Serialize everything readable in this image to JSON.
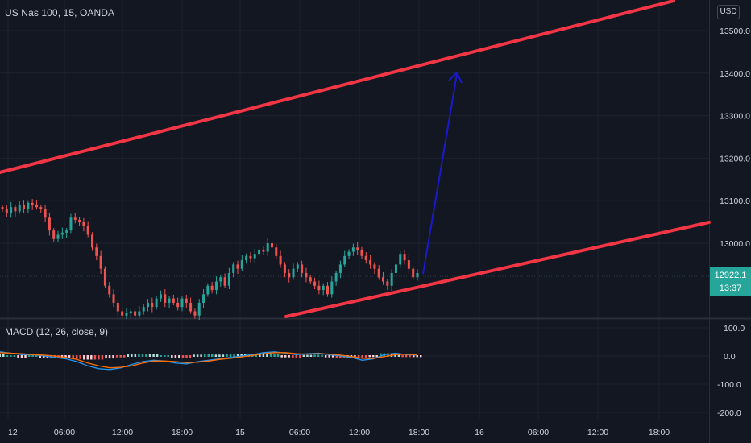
{
  "symbol_title": "US Nas 100, 15, OANDA",
  "currency": "USD",
  "last_price": "12922.1",
  "countdown": "13:37",
  "macd_title": "MACD (12, 26, close, 9)",
  "colors": {
    "background": "#131722",
    "grid": "#1e222d",
    "up": "#26a69a",
    "down": "#ef5350",
    "channel": "#f23645",
    "arrow": "#1a1acc",
    "macd_line": "#2196f3",
    "signal_line": "#ff6d00",
    "text": "#d1d4dc"
  },
  "chart_data": [
    {
      "type": "candlestick",
      "title": "US Nas 100, 15, OANDA",
      "xlabel": "",
      "ylabel": "USD",
      "ylim": [
        12820,
        13550
      ],
      "x_ticks": [
        "12",
        "06:00",
        "12:00",
        "18:00",
        "15",
        "06:00",
        "12:00",
        "18:00",
        "16",
        "06:00",
        "12:00",
        "18:00"
      ],
      "y_ticks": [
        13000.0,
        13100.0,
        13200.0,
        13300.0,
        13400.0,
        13500.0
      ],
      "last_price": 12922.1,
      "close_series": [
        13080,
        13070,
        13085,
        13075,
        13090,
        13080,
        13095,
        13090,
        13085,
        13080,
        13060,
        13030,
        13010,
        13020,
        13025,
        13030,
        13060,
        13055,
        13050,
        13040,
        13020,
        12990,
        12970,
        12940,
        12900,
        12880,
        12860,
        12840,
        12830,
        12835,
        12840,
        12830,
        12840,
        12850,
        12860,
        12850,
        12870,
        12880,
        12860,
        12870,
        12860,
        12850,
        12870,
        12860,
        12840,
        12830,
        12860,
        12880,
        12900,
        12890,
        12910,
        12920,
        12900,
        12930,
        12950,
        12940,
        12960,
        12970,
        12965,
        12975,
        12985,
        12980,
        13000,
        12990,
        12970,
        12950,
        12930,
        12920,
        12940,
        12950,
        12930,
        12920,
        12910,
        12900,
        12890,
        12900,
        12880,
        12910,
        12930,
        12950,
        12970,
        12980,
        12990,
        12985,
        12970,
        12960,
        12950,
        12940,
        12920,
        12910,
        12900,
        12930,
        12950,
        12975,
        12960,
        12940,
        12920,
        12930
      ],
      "annotations": [
        {
          "kind": "channel_upper",
          "from": 13180,
          "to": 13560
        },
        {
          "kind": "channel_lower",
          "from": 12820,
          "to": 13040
        },
        {
          "kind": "arrow",
          "from": 12922,
          "to": 13410
        }
      ]
    },
    {
      "type": "line",
      "title": "MACD (12, 26, close, 9)",
      "ylim": [
        -200,
        100
      ],
      "y_ticks": [
        100.0,
        0.0,
        -100.0,
        -200.0
      ],
      "series": [
        {
          "name": "MACD",
          "values": [
            15,
            10,
            5,
            5,
            0,
            -5,
            -10,
            -20,
            -35,
            -45,
            -48,
            -42,
            -30,
            -20,
            -15,
            -18,
            -25,
            -28,
            -20,
            -15,
            -10,
            -5,
            0,
            5,
            12,
            15,
            10,
            5,
            8,
            10,
            5,
            0,
            -5,
            -15,
            -10,
            5,
            10,
            5,
            3
          ]
        },
        {
          "name": "Signal",
          "values": [
            12,
            10,
            8,
            5,
            3,
            0,
            -5,
            -12,
            -25,
            -35,
            -42,
            -40,
            -35,
            -25,
            -18,
            -18,
            -20,
            -24,
            -22,
            -18,
            -12,
            -8,
            -3,
            2,
            8,
            12,
            12,
            8,
            7,
            8,
            7,
            3,
            -2,
            -8,
            -9,
            -2,
            5,
            6,
            4
          ]
        }
      ]
    }
  ]
}
